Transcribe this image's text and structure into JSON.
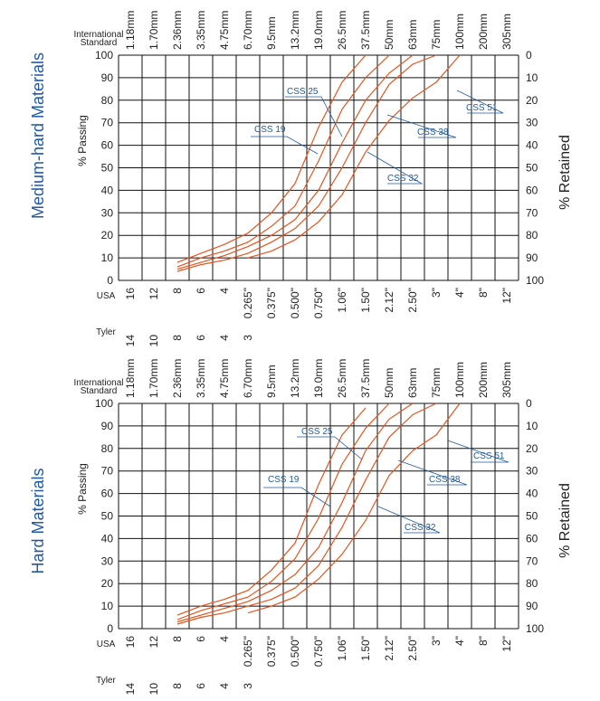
{
  "charts": [
    {
      "side_title": "Medium-hard Materials",
      "left_axis_label": "% Passing",
      "right_axis_label": "% Retained",
      "intl_label": [
        "International",
        "Standard"
      ],
      "usa_label": "USA",
      "tyler_label": "Tyler"
    },
    {
      "side_title": "Hard Materials",
      "left_axis_label": "% Passing",
      "right_axis_label": "% Retained",
      "intl_label": [
        "International",
        "Standard"
      ],
      "usa_label": "USA",
      "tyler_label": "Tyler"
    }
  ],
  "sieve_intl": [
    "1.18mm",
    "1.70mm",
    "2.36mm",
    "3.35mm",
    "4.75mm",
    "6.70mm",
    "9.5mm",
    "13.2mm",
    "19.0mm",
    "26.5mm",
    "37.5mm",
    "50mm",
    "63mm",
    "75mm",
    "100mm",
    "200mm",
    "305mm"
  ],
  "sieve_usa": [
    "16",
    "12",
    "8",
    "6",
    "4",
    "0.265\"",
    "0.375\"",
    "0.500\"",
    "0.750\"",
    "1.06\"",
    "1.50\"",
    "2.12\"",
    "2.50\"",
    "3\"",
    "4\"",
    "8\"",
    "12\""
  ],
  "sieve_tyler": [
    "14",
    "10",
    "8",
    "6",
    "4",
    "3"
  ],
  "passing_ticks": [
    0,
    10,
    20,
    30,
    40,
    50,
    60,
    70,
    80,
    90,
    100
  ],
  "retained_ticks": [
    100,
    90,
    80,
    70,
    60,
    50,
    40,
    30,
    20,
    10,
    0
  ],
  "colors": {
    "curve": "#e8531c",
    "grid": "#111111",
    "label": "#1f5aa6"
  },
  "chart_data": [
    {
      "type": "line",
      "title": "Medium-hard Materials",
      "xlabel": "",
      "ylabel": "% Passing",
      "y2label": "% Retained",
      "ylim": [
        0,
        100
      ],
      "x_categories": [
        "1.18mm",
        "1.70mm",
        "2.36mm",
        "3.35mm",
        "4.75mm",
        "6.70mm",
        "9.5mm",
        "13.2mm",
        "19.0mm",
        "26.5mm",
        "37.5mm",
        "50mm",
        "63mm",
        "75mm",
        "100mm",
        "200mm",
        "305mm"
      ],
      "grid": true,
      "series": [
        {
          "name": "CSS 19",
          "points": [
            [
              2,
              8
            ],
            [
              3,
              12
            ],
            [
              4,
              16
            ],
            [
              5,
              21
            ],
            [
              6,
              30
            ],
            [
              7,
              43
            ],
            [
              8,
              68
            ],
            [
              9,
              88
            ],
            [
              10,
              100
            ]
          ]
        },
        {
          "name": "CSS 25",
          "points": [
            [
              2,
              6
            ],
            [
              3,
              10
            ],
            [
              4,
              13
            ],
            [
              5,
              17
            ],
            [
              6,
              24
            ],
            [
              7,
              33
            ],
            [
              8,
              53
            ],
            [
              9,
              76
            ],
            [
              10,
              90
            ],
            [
              11,
              100
            ]
          ]
        },
        {
          "name": "CSS 32",
          "points": [
            [
              2,
              5
            ],
            [
              3,
              8
            ],
            [
              4,
              11
            ],
            [
              5,
              15
            ],
            [
              6,
              20
            ],
            [
              7,
              27
            ],
            [
              8,
              40
            ],
            [
              9,
              61
            ],
            [
              10,
              80
            ],
            [
              11,
              92
            ],
            [
              12,
              100
            ]
          ]
        },
        {
          "name": "CSS 38",
          "points": [
            [
              2,
              4
            ],
            [
              3,
              7
            ],
            [
              4,
              9
            ],
            [
              5,
              12
            ],
            [
              6,
              17
            ],
            [
              7,
              23
            ],
            [
              8,
              33
            ],
            [
              9,
              50
            ],
            [
              10,
              70
            ],
            [
              11,
              87
            ],
            [
              12,
              96
            ],
            [
              13,
              100
            ]
          ]
        },
        {
          "name": "CSS 51",
          "points": [
            [
              5,
              10
            ],
            [
              6,
              13
            ],
            [
              7,
              18
            ],
            [
              8,
              26
            ],
            [
              9,
              38
            ],
            [
              10,
              57
            ],
            [
              11,
              71
            ],
            [
              12,
              81
            ],
            [
              13,
              88
            ],
            [
              14,
              100
            ]
          ]
        }
      ]
    },
    {
      "type": "line",
      "title": "Hard Materials",
      "xlabel": "",
      "ylabel": "% Passing",
      "y2label": "% Retained",
      "ylim": [
        0,
        100
      ],
      "x_categories": [
        "1.18mm",
        "1.70mm",
        "2.36mm",
        "3.35mm",
        "4.75mm",
        "6.70mm",
        "9.5mm",
        "13.2mm",
        "19.0mm",
        "26.5mm",
        "37.5mm",
        "50mm",
        "63mm",
        "75mm",
        "100mm",
        "200mm",
        "305mm"
      ],
      "grid": true,
      "series": [
        {
          "name": "CSS 19",
          "points": [
            [
              2,
              6
            ],
            [
              3,
              10
            ],
            [
              4,
              13
            ],
            [
              5,
              17
            ],
            [
              6,
              26
            ],
            [
              7,
              38
            ],
            [
              8,
              64
            ],
            [
              9,
              86
            ],
            [
              10,
              98
            ]
          ]
        },
        {
          "name": "CSS 25",
          "points": [
            [
              2,
              4
            ],
            [
              3,
              8
            ],
            [
              4,
              11
            ],
            [
              5,
              14
            ],
            [
              6,
              21
            ],
            [
              7,
              31
            ],
            [
              8,
              49
            ],
            [
              9,
              73
            ],
            [
              10,
              89
            ],
            [
              11,
              100
            ]
          ]
        },
        {
          "name": "CSS 32",
          "points": [
            [
              2,
              3
            ],
            [
              3,
              6
            ],
            [
              4,
              9
            ],
            [
              5,
              12
            ],
            [
              6,
              17
            ],
            [
              7,
              24
            ],
            [
              8,
              36
            ],
            [
              9,
              56
            ],
            [
              10,
              79
            ],
            [
              11,
              93
            ],
            [
              12,
              100
            ]
          ]
        },
        {
          "name": "CSS 38",
          "points": [
            [
              2,
              2
            ],
            [
              3,
              5
            ],
            [
              4,
              7
            ],
            [
              5,
              10
            ],
            [
              6,
              13
            ],
            [
              7,
              18
            ],
            [
              8,
              28
            ],
            [
              9,
              45
            ],
            [
              10,
              66
            ],
            [
              11,
              85
            ],
            [
              12,
              95
            ],
            [
              13,
              100
            ]
          ]
        },
        {
          "name": "CSS 51",
          "points": [
            [
              5,
              7
            ],
            [
              6,
              10
            ],
            [
              7,
              14
            ],
            [
              8,
              22
            ],
            [
              9,
              33
            ],
            [
              10,
              48
            ],
            [
              11,
              68
            ],
            [
              12,
              79
            ],
            [
              13,
              86
            ],
            [
              14,
              100
            ]
          ]
        }
      ]
    }
  ]
}
